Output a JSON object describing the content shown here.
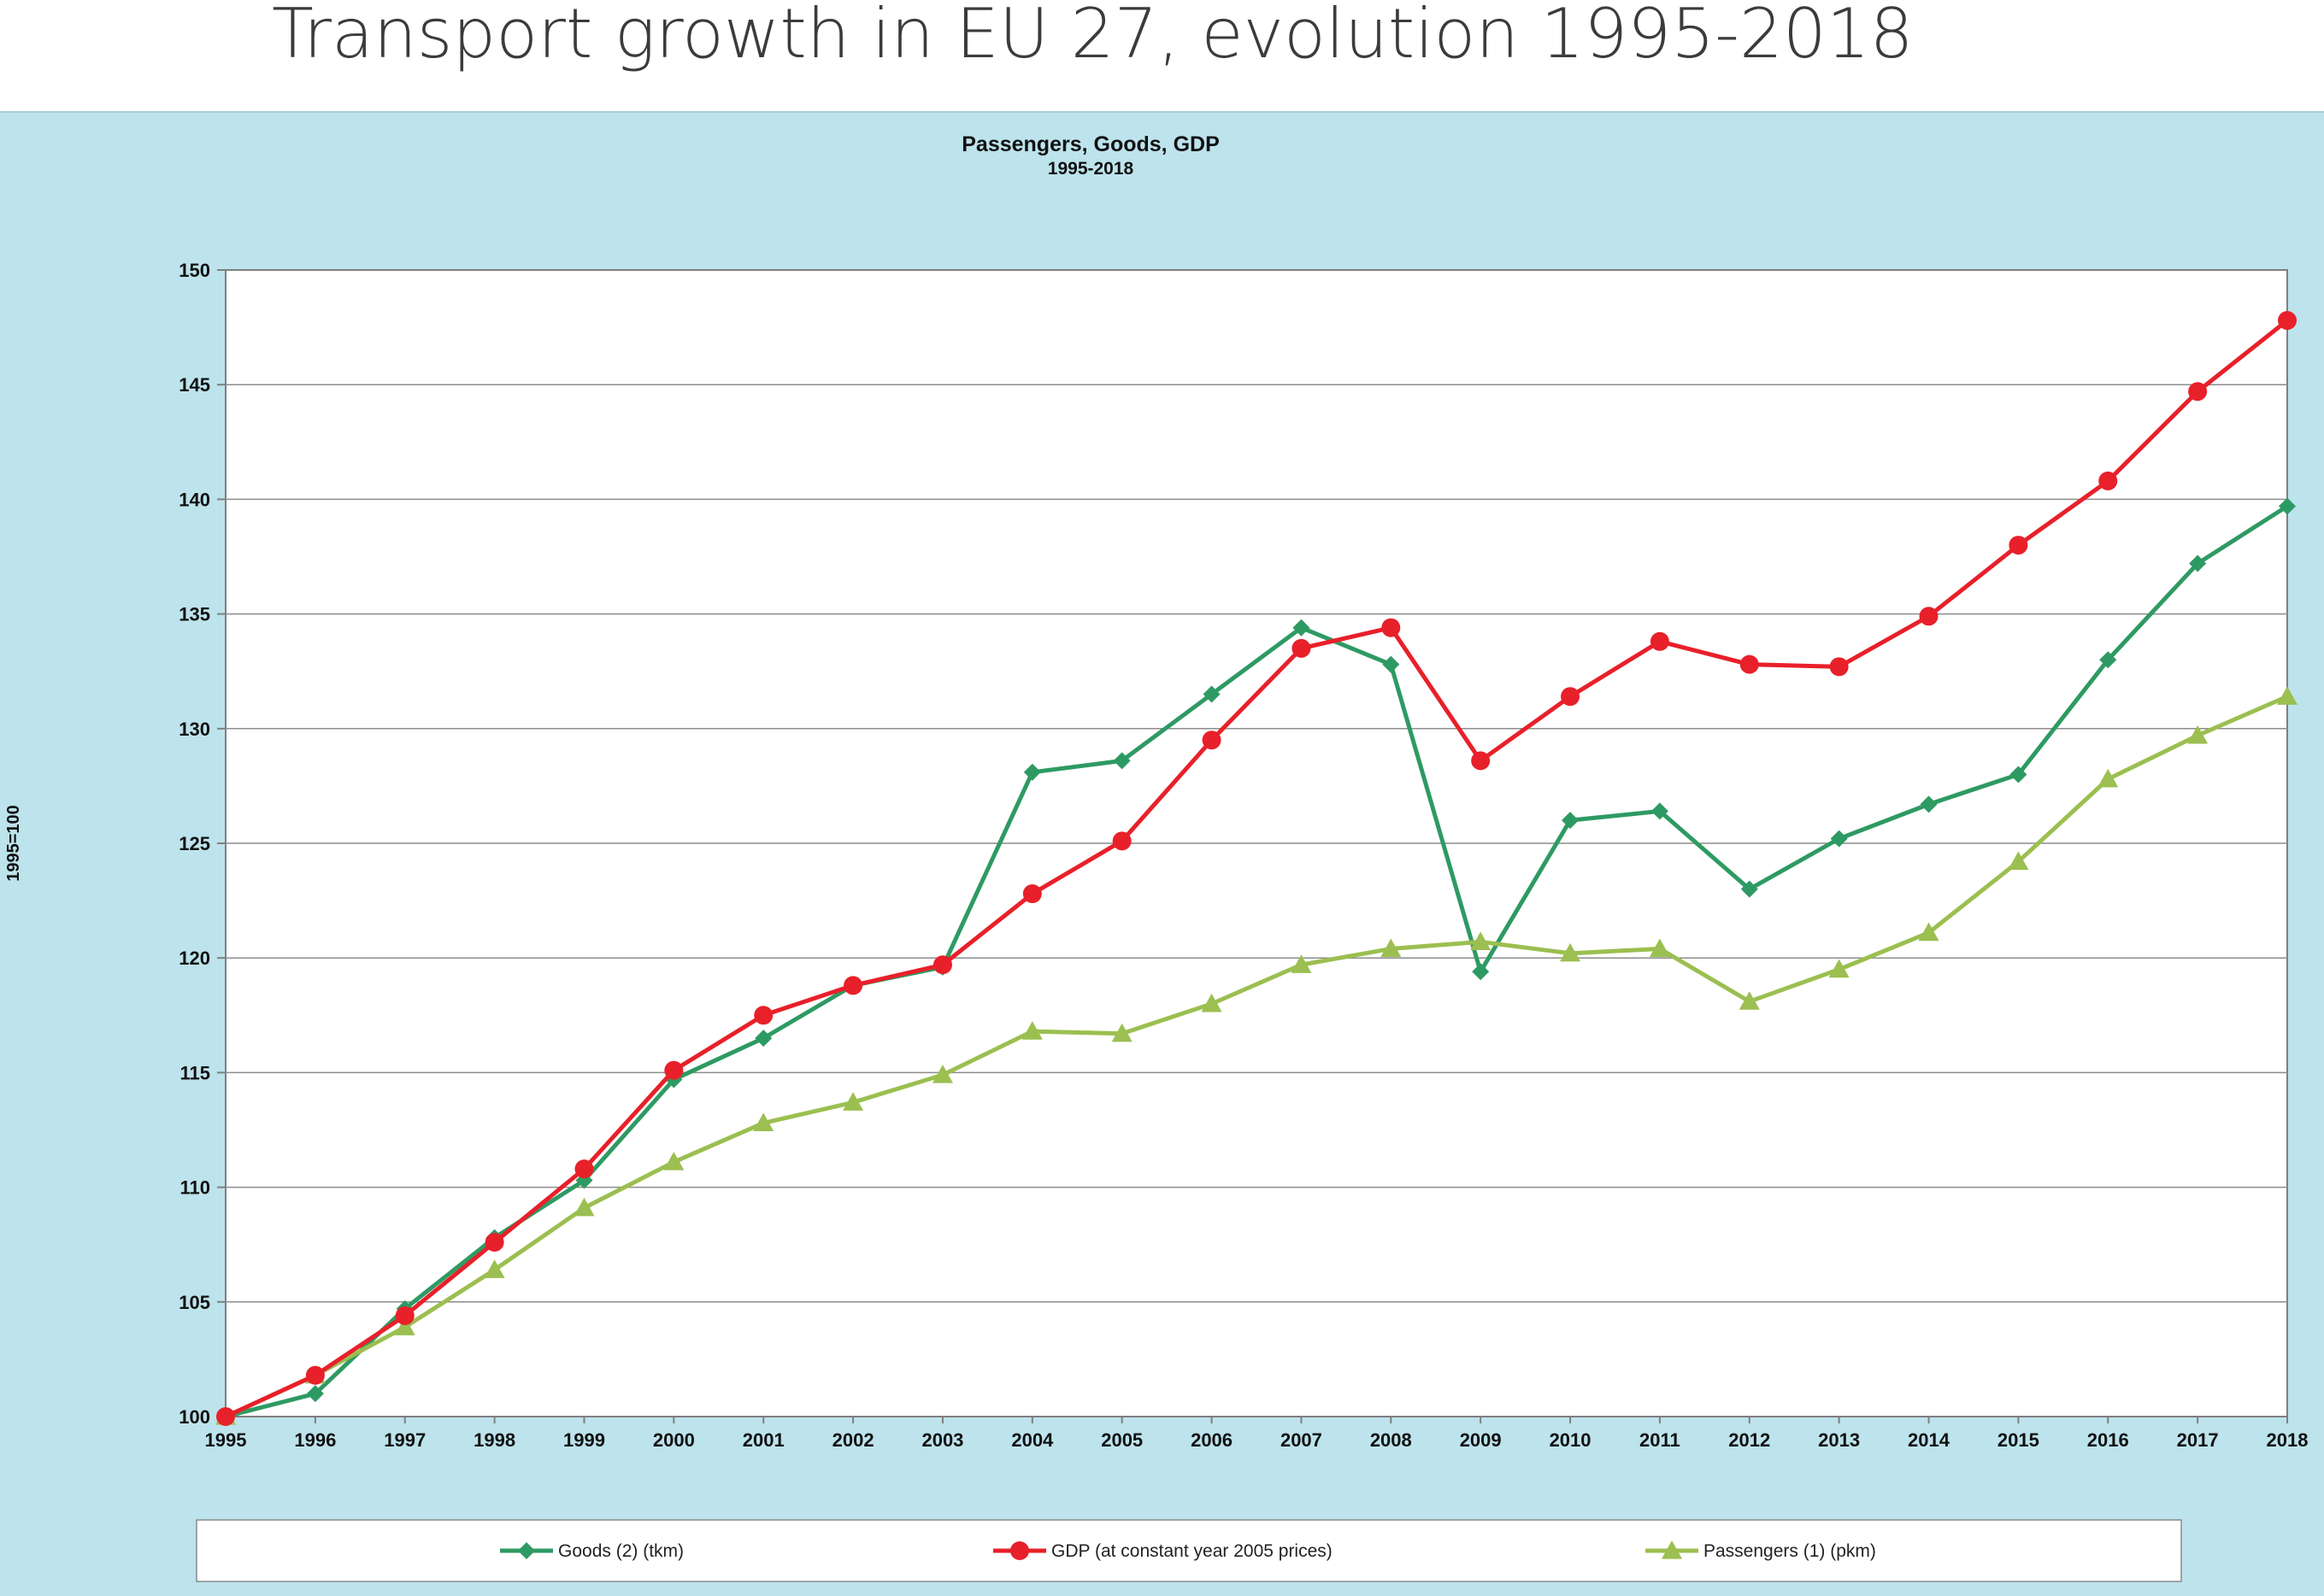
{
  "page": {
    "title": "Transport growth in EU 27, evolution 1995-2018"
  },
  "chart_data": {
    "type": "line",
    "title": "Passengers, Goods, GDP",
    "subtitle": "1995-2018",
    "xlabel": "",
    "ylabel": "1995=100",
    "ylim": [
      100,
      150
    ],
    "yticks": [
      100,
      105,
      110,
      115,
      120,
      125,
      130,
      135,
      140,
      145,
      150
    ],
    "grid": true,
    "legend_position": "bottom",
    "categories": [
      "1995",
      "1996",
      "1997",
      "1998",
      "1999",
      "2000",
      "2001",
      "2002",
      "2003",
      "2004",
      "2005",
      "2006",
      "2007",
      "2008",
      "2009",
      "2010",
      "2011",
      "2012",
      "2013",
      "2014",
      "2015",
      "2016",
      "2017",
      "2018"
    ],
    "series": [
      {
        "name": "Goods (2) (tkm)",
        "color": "#2e9a63",
        "marker": "diamond",
        "values": [
          100,
          101,
          104.7,
          107.8,
          110.3,
          114.7,
          116.5,
          118.8,
          119.6,
          128.1,
          128.6,
          131.5,
          134.4,
          132.8,
          119.4,
          126.0,
          126.4,
          123.0,
          125.2,
          126.7,
          128.0,
          133.0,
          137.2,
          139.7
        ]
      },
      {
        "name": "GDP (at constant year 2005 prices)",
        "color": "#e8202a",
        "marker": "circle",
        "values": [
          100,
          101.8,
          104.4,
          107.6,
          110.8,
          115.1,
          117.5,
          118.8,
          119.7,
          122.8,
          125.1,
          129.5,
          133.5,
          134.4,
          128.6,
          131.4,
          133.8,
          132.8,
          132.7,
          134.9,
          138.0,
          140.8,
          144.7,
          147.8
        ]
      },
      {
        "name": "Passengers (1) (pkm)",
        "color": "#9bbf50",
        "marker": "triangle",
        "values": [
          100,
          101.8,
          103.9,
          106.4,
          109.1,
          111.1,
          112.8,
          113.7,
          114.9,
          116.8,
          116.7,
          118.0,
          119.7,
          120.4,
          120.7,
          120.2,
          120.4,
          118.1,
          119.5,
          121.1,
          124.2,
          127.8,
          129.7,
          131.4
        ]
      }
    ]
  }
}
